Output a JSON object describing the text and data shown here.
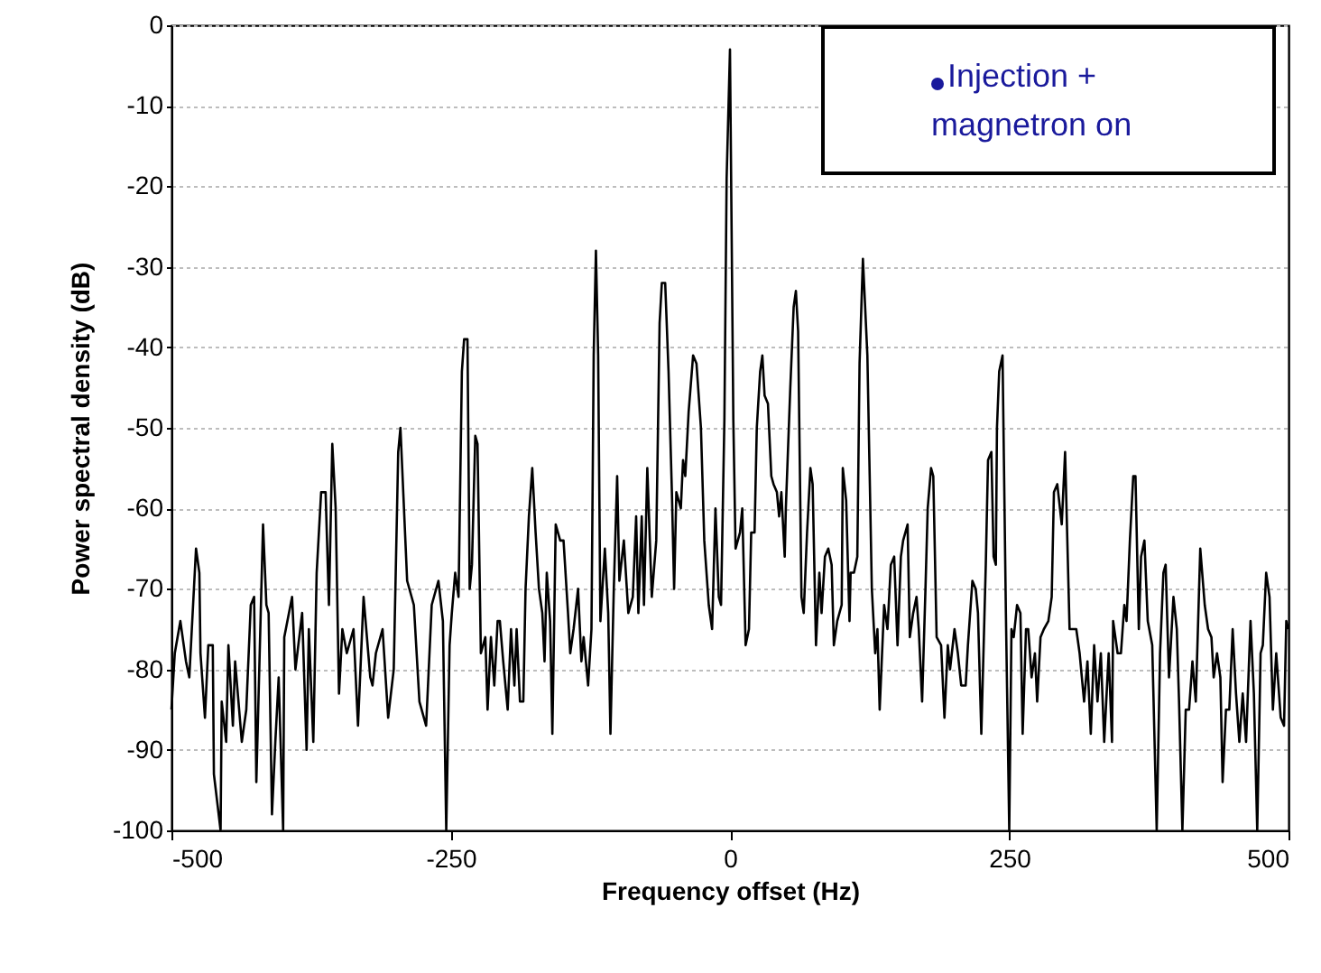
{
  "chart_data": {
    "type": "line",
    "xlabel": "Frequency offset (Hz)",
    "ylabel": "Power spectral density (dB)",
    "xlim": [
      -500,
      500
    ],
    "xticks": [
      -500,
      -250,
      0,
      250,
      500
    ],
    "ylim": [
      -100,
      0
    ],
    "yticks": [
      0,
      -10,
      -20,
      -30,
      -40,
      -50,
      -60,
      -70,
      -80,
      -90,
      -100
    ],
    "grid": "y",
    "marker": "none",
    "line_style": "solid",
    "annotations": [
      "Injection + magnetron on"
    ],
    "series": [
      {
        "color": "#000000",
        "x": [
          -500,
          -497,
          -492,
          -487,
          -484,
          -478,
          -475,
          -474,
          -470,
          -467,
          -463,
          -462,
          -456,
          -455,
          -451,
          -449,
          -445,
          -443,
          -437,
          -433,
          -429,
          -426,
          -424,
          -418,
          -415,
          -413,
          -410,
          -407,
          -404,
          -400,
          -399,
          -392,
          -389,
          -383,
          -379,
          -377,
          -373,
          -370,
          -366,
          -362,
          -359,
          -356,
          -353,
          -350,
          -347,
          -343,
          -337,
          -333,
          -328,
          -322,
          -320,
          -317,
          -311,
          -306,
          -301,
          -297,
          -295,
          -289,
          -283,
          -278,
          -272,
          -267,
          -261,
          -257,
          -254,
          -251,
          -249,
          -246,
          -243,
          -240,
          -238,
          -235,
          -233,
          -231,
          -228,
          -226,
          -223,
          -219,
          -217,
          -214,
          -211,
          -208,
          -206,
          -203,
          -199,
          -196,
          -193,
          -191,
          -188,
          -185,
          -183,
          -180,
          -177,
          -174,
          -171,
          -168,
          -166,
          -164,
          -161,
          -159,
          -156,
          -152,
          -149,
          -145,
          -143,
          -140,
          -136,
          -133,
          -131,
          -127,
          -124,
          -122,
          -120,
          -118,
          -116,
          -112,
          -109,
          -107,
          -104,
          -101,
          -99,
          -95,
          -91,
          -87,
          -84,
          -82,
          -79,
          -77,
          -74,
          -70,
          -66,
          -63,
          -61,
          -58,
          -55,
          -52,
          -50,
          -48,
          -44,
          -42,
          -40,
          -37,
          -33,
          -30,
          -26,
          -23,
          -19,
          -16,
          -13,
          -10,
          -8,
          -5,
          -3,
          0,
          3,
          5,
          9,
          11,
          14,
          17,
          19,
          22,
          24,
          27,
          29,
          31,
          34,
          37,
          39,
          42,
          44,
          46,
          49,
          50,
          54,
          57,
          59,
          61,
          64,
          66,
          69,
          72,
          74,
          77,
          80,
          82,
          85,
          88,
          91,
          93,
          96,
          100,
          101,
          104,
          107,
          108,
          111,
          114,
          116,
          119,
          123,
          127,
          130,
          132,
          134,
          138,
          141,
          144,
          147,
          150,
          153,
          155,
          159,
          161,
          164,
          167,
          169,
          172,
          175,
          177,
          180,
          182,
          185,
          189,
          192,
          195,
          197,
          201,
          204,
          207,
          211,
          213,
          217,
          220,
          222,
          225,
          229,
          231,
          234,
          236,
          238,
          239,
          241,
          244,
          247,
          250,
          252,
          254,
          257,
          260,
          262,
          265,
          267,
          270,
          273,
          275,
          278,
          281,
          285,
          288,
          290,
          293,
          297,
          300,
          304,
          310,
          313,
          317,
          320,
          323,
          326,
          329,
          332,
          335,
          339,
          342,
          343,
          347,
          350,
          353,
          355,
          358,
          361,
          363,
          366,
          368,
          371,
          374,
          378,
          382,
          385,
          388,
          390,
          393,
          397,
          400,
          402,
          405,
          408,
          411,
          414,
          417,
          421,
          425,
          428,
          431,
          433,
          436,
          439,
          441,
          444,
          447,
          450,
          453,
          456,
          459,
          462,
          466,
          469,
          472,
          475,
          477,
          480,
          483,
          486,
          489,
          493,
          496,
          498,
          500
        ],
        "values": [
          -85,
          -78,
          -74,
          -79,
          -81,
          -65,
          -68,
          -78,
          -86,
          -77,
          -77,
          -93,
          -100,
          -84,
          -89,
          -77,
          -87,
          -79,
          -89,
          -85,
          -72,
          -71,
          -94,
          -62,
          -72,
          -73,
          -98,
          -89,
          -81,
          -100,
          -76,
          -71,
          -80,
          -73,
          -90,
          -75,
          -89,
          -68,
          -58,
          -58,
          -72,
          -52,
          -60,
          -83,
          -75,
          -78,
          -75,
          -87,
          -71,
          -81,
          -82,
          -78,
          -75,
          -86,
          -80,
          -53,
          -50,
          -69,
          -72,
          -84,
          -87,
          -72,
          -69,
          -74,
          -100,
          -77,
          -73,
          -68,
          -71,
          -43,
          -39,
          -39,
          -70,
          -67,
          -51,
          -52,
          -78,
          -76,
          -85,
          -76,
          -82,
          -74,
          -74,
          -79,
          -85,
          -75,
          -82,
          -75,
          -84,
          -84,
          -70,
          -61,
          -55,
          -63,
          -70,
          -73,
          -79,
          -68,
          -74,
          -88,
          -62,
          -64,
          -64,
          -73,
          -78,
          -75,
          -70,
          -79,
          -76,
          -82,
          -75,
          -41,
          -28,
          -41,
          -74,
          -65,
          -73,
          -88,
          -70,
          -56,
          -69,
          -64,
          -73,
          -71,
          -61,
          -73,
          -61,
          -72,
          -55,
          -71,
          -64,
          -37,
          -32,
          -32,
          -43,
          -58,
          -70,
          -58,
          -60,
          -54,
          -56,
          -48,
          -41,
          -42,
          -50,
          -64,
          -72,
          -75,
          -60,
          -71,
          -72,
          -49,
          -19,
          -3,
          -49,
          -65,
          -63,
          -60,
          -77,
          -75,
          -63,
          -63,
          -50,
          -43,
          -41,
          -46,
          -47,
          -56,
          -57,
          -58,
          -61,
          -58,
          -66,
          -60,
          -45,
          -35,
          -33,
          -38,
          -71,
          -73,
          -63,
          -55,
          -57,
          -77,
          -68,
          -73,
          -66,
          -65,
          -67,
          -77,
          -74,
          -72,
          -55,
          -59,
          -74,
          -68,
          -68,
          -66,
          -42,
          -29,
          -41,
          -70,
          -78,
          -75,
          -85,
          -72,
          -75,
          -67,
          -66,
          -77,
          -66,
          -64,
          -62,
          -76,
          -73,
          -71,
          -75,
          -84,
          -70,
          -60,
          -55,
          -56,
          -76,
          -77,
          -86,
          -77,
          -80,
          -75,
          -78,
          -82,
          -82,
          -77,
          -69,
          -70,
          -73,
          -88,
          -67,
          -54,
          -53,
          -66,
          -67,
          -50,
          -43,
          -41,
          -73,
          -100,
          -75,
          -76,
          -72,
          -73,
          -88,
          -75,
          -75,
          -81,
          -78,
          -84,
          -76,
          -75,
          -74,
          -71,
          -58,
          -57,
          -62,
          -53,
          -75,
          -75,
          -78,
          -84,
          -79,
          -88,
          -77,
          -84,
          -78,
          -89,
          -78,
          -89,
          -74,
          -78,
          -78,
          -72,
          -74,
          -64,
          -56,
          -56,
          -75,
          -66,
          -64,
          -74,
          -77,
          -100,
          -78,
          -68,
          -67,
          -81,
          -71,
          -75,
          -84,
          -100,
          -85,
          -85,
          -79,
          -84,
          -65,
          -72,
          -75,
          -76,
          -81,
          -78,
          -81,
          -94,
          -85,
          -85,
          -75,
          -83,
          -89,
          -83,
          -89,
          -74,
          -83,
          -100,
          -78,
          -77,
          -68,
          -71,
          -85,
          -78,
          -86,
          -87,
          -74,
          -75
        ]
      }
    ]
  }
}
